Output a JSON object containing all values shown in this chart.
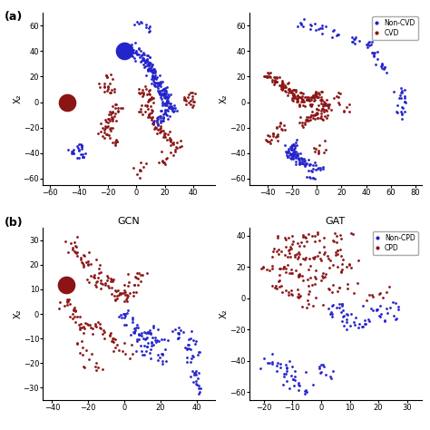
{
  "top_left": {
    "title": "",
    "xlabel": "",
    "ylabel": "X₂",
    "xlim": [
      -65,
      55
    ],
    "ylim": [
      -65,
      70
    ],
    "xticks": [
      -60,
      -40,
      -20,
      0,
      20,
      40
    ],
    "yticks": [
      -60,
      -40,
      -20,
      0,
      20,
      40,
      60
    ],
    "legend": false
  },
  "top_right": {
    "title": "",
    "xlabel": "",
    "ylabel": "X₂",
    "xlim": [
      -55,
      85
    ],
    "ylim": [
      -65,
      70
    ],
    "xticks": [
      -40,
      -20,
      0,
      20,
      40,
      60,
      80
    ],
    "yticks": [
      -60,
      -40,
      -20,
      0,
      20,
      40,
      60
    ],
    "legend": true,
    "legend_labels": [
      "Non-CVD",
      "CVD"
    ],
    "legend_colors": [
      "#2020CC",
      "#8B1010"
    ]
  },
  "bottom_left": {
    "title": "GCN",
    "xlabel": "",
    "ylabel": "X₂",
    "xlim": [
      -45,
      50
    ],
    "ylim": [
      -35,
      35
    ],
    "xticks": [
      -40,
      -20,
      0,
      20,
      40
    ],
    "yticks": [
      -30,
      -20,
      -10,
      0,
      10,
      20,
      30
    ],
    "legend": false
  },
  "bottom_right": {
    "title": "GAT",
    "xlabel": "",
    "ylabel": "X₂",
    "xlim": [
      -25,
      35
    ],
    "ylim": [
      -65,
      45
    ],
    "xticks": [
      -20,
      -10,
      0,
      10,
      20,
      30
    ],
    "yticks": [
      -60,
      -40,
      -20,
      0,
      20,
      40
    ],
    "legend": true,
    "legend_labels": [
      "Non-CPD",
      "CPD"
    ],
    "legend_colors": [
      "#2020CC",
      "#8B1010"
    ]
  },
  "blue_color": "#2424CC",
  "red_color": "#8B1515",
  "marker_size": 4,
  "label_a": "(a)",
  "label_b": "(b)"
}
